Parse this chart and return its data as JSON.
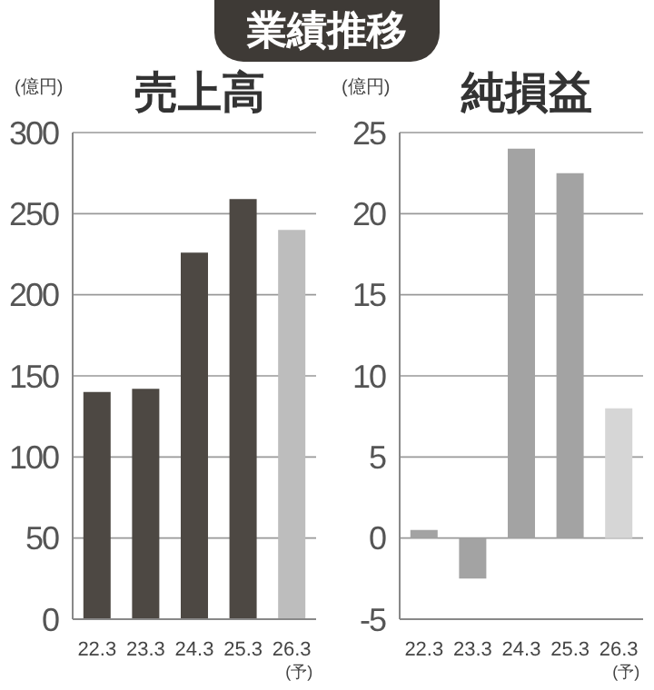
{
  "chart_data": [
    {
      "type": "other",
      "title": "業績推移"
    },
    {
      "type": "bar",
      "title": "売上高",
      "ylabel": "(億円)",
      "categories": [
        "22.3",
        "23.3",
        "24.3",
        "25.3",
        "26.3(予)"
      ],
      "values": [
        140,
        142,
        226,
        259,
        240
      ],
      "colors": [
        "#4d4843",
        "#4d4843",
        "#4d4843",
        "#4d4843",
        "#bdbdbd"
      ],
      "ylim": [
        0,
        300
      ],
      "yticks": [
        0,
        50,
        100,
        150,
        200,
        250,
        300
      ],
      "grid": "y"
    },
    {
      "type": "bar",
      "title": "純損益",
      "ylabel": "(億円)",
      "categories": [
        "22.3",
        "23.3",
        "24.3",
        "25.3",
        "26.3(予)"
      ],
      "values": [
        0.5,
        -2.5,
        24,
        22.5,
        8
      ],
      "colors": [
        "#a3a3a3",
        "#a3a3a3",
        "#a3a3a3",
        "#a3a3a3",
        "#d6d6d6"
      ],
      "ylim": [
        -5,
        25
      ],
      "yticks": [
        -5,
        0,
        5,
        10,
        15,
        20,
        25
      ],
      "grid": "y"
    }
  ]
}
